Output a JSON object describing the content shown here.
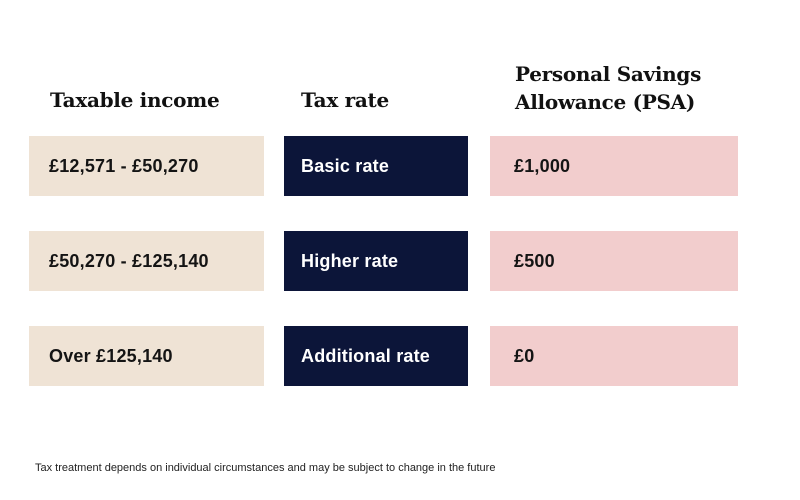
{
  "headers": {
    "income": "Taxable income",
    "rate": "Tax rate",
    "psa_line1": "Personal Savings",
    "psa_line2": "Allowance (PSA)"
  },
  "rows": [
    {
      "income": "£12,571 - £50,270",
      "rate": "Basic rate",
      "psa": "£1,000"
    },
    {
      "income": "£50,270 - £125,140",
      "rate": "Higher rate",
      "psa": "£500"
    },
    {
      "income": "Over £125,140",
      "rate": "Additional rate",
      "psa": "£0"
    }
  ],
  "footnote": "Tax treatment depends on individual circumstances and may be subject to change in the future",
  "colors": {
    "income_bg": "#efe3d5",
    "rate_bg": "#0c1539",
    "psa_bg": "#f2cdcd"
  }
}
